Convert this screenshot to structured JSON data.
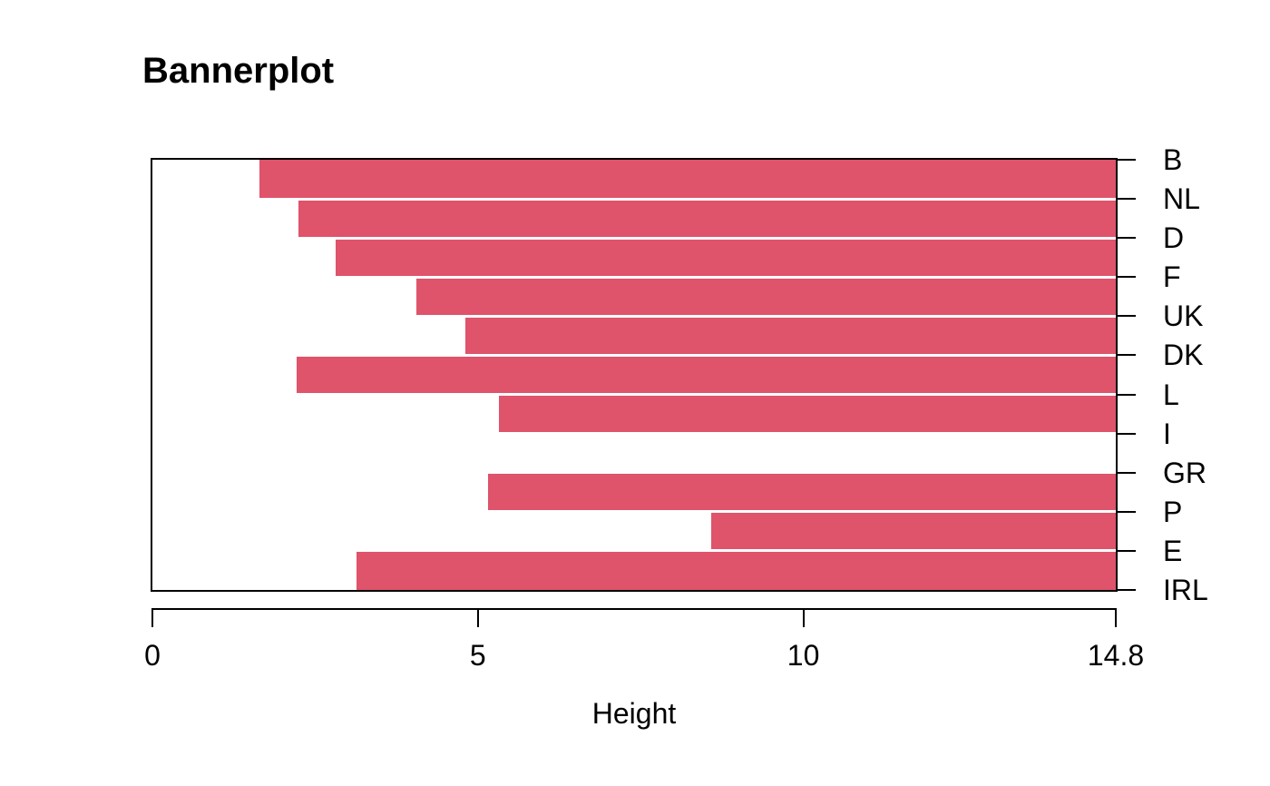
{
  "title": "Bannerplot",
  "chart_data": {
    "type": "bar",
    "subtype": "bannerplot-horizontal",
    "title": "Bannerplot",
    "xlabel": "Height",
    "ylabel": "",
    "xlim": [
      0,
      14.8
    ],
    "x_ticks": [
      {
        "value": 0,
        "label": "0"
      },
      {
        "value": 5,
        "label": "5"
      },
      {
        "value": 10,
        "label": "10"
      },
      {
        "value": 14.8,
        "label": "14.8"
      }
    ],
    "categories": [
      "B",
      "NL",
      "D",
      "F",
      "UK",
      "DK",
      "L",
      "I",
      "GR",
      "P",
      "E",
      "IRL"
    ],
    "bars": [
      {
        "between": "B-NL",
        "start": 1.65,
        "end": 14.8
      },
      {
        "between": "NL-D",
        "start": 2.25,
        "end": 14.8
      },
      {
        "between": "D-F",
        "start": 2.81,
        "end": 14.8
      },
      {
        "between": "F-UK",
        "start": 4.06,
        "end": 14.8
      },
      {
        "between": "UK-DK",
        "start": 4.81,
        "end": 14.8
      },
      {
        "between": "DK-L",
        "start": 2.22,
        "end": 14.8
      },
      {
        "between": "L-I",
        "start": 5.32,
        "end": 14.8
      },
      {
        "between": "I-GR",
        "start": 14.8,
        "end": 14.8
      },
      {
        "between": "GR-P",
        "start": 5.16,
        "end": 14.8
      },
      {
        "between": "P-E",
        "start": 8.58,
        "end": 14.8
      },
      {
        "between": "E-IRL",
        "start": 3.14,
        "end": 14.8
      }
    ],
    "bar_color": "#DF536B",
    "separator_color": "#FFFFFF",
    "axis_color": "#000000",
    "text_color": "#000000",
    "background": "#FFFFFF",
    "grid": false,
    "legend": "none"
  }
}
